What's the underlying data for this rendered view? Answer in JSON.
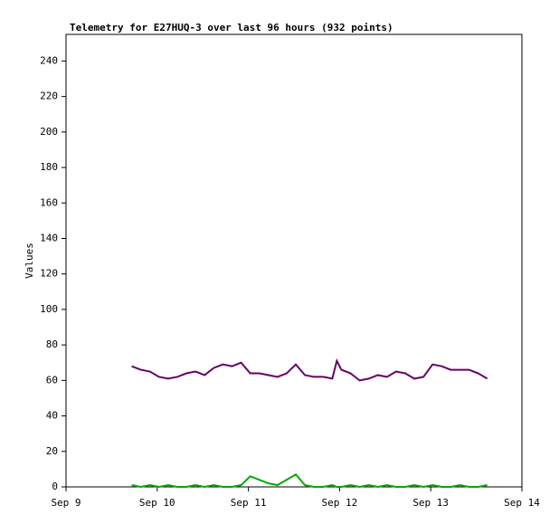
{
  "chart_data": {
    "type": "line",
    "title": "Telemetry for E27HUQ-3 over last 96 hours (932 points)",
    "y_label": "Values",
    "x": [
      9.72,
      9.82,
      9.92,
      10.02,
      10.12,
      10.22,
      10.32,
      10.42,
      10.52,
      10.62,
      10.72,
      10.82,
      10.92,
      11.02,
      11.12,
      11.22,
      11.32,
      11.42,
      11.52,
      11.62,
      11.72,
      11.82,
      11.92,
      11.97,
      12.02,
      12.12,
      12.22,
      12.32,
      12.42,
      12.52,
      12.62,
      12.72,
      12.82,
      12.92,
      13.02,
      13.12,
      13.22,
      13.32,
      13.42,
      13.52,
      13.62
    ],
    "series": [
      {
        "color": "#660066",
        "values": [
          68,
          66,
          65,
          62,
          61,
          62,
          64,
          65,
          63,
          67,
          69,
          68,
          70,
          64,
          64,
          63,
          62,
          64,
          69,
          63,
          62,
          62,
          61,
          71,
          66,
          64,
          60,
          61,
          63,
          62,
          65,
          64,
          61,
          62,
          69,
          68,
          66,
          66,
          66,
          64,
          61
        ]
      },
      {
        "color": "#00aa00",
        "values": [
          1,
          0,
          1,
          0,
          1,
          0,
          0,
          1,
          0,
          1,
          0,
          0,
          1,
          6,
          4,
          2,
          1,
          4,
          7,
          1,
          0,
          0,
          1,
          0,
          0,
          1,
          0,
          1,
          0,
          1,
          0,
          0,
          1,
          0,
          1,
          0,
          0,
          1,
          0,
          0,
          1
        ]
      }
    ],
    "xlim": [
      9,
      14
    ],
    "xticks": [
      {
        "value": 9,
        "label": "Sep 9"
      },
      {
        "value": 10,
        "label": "Sep 10"
      },
      {
        "value": 11,
        "label": "Sep 11"
      },
      {
        "value": 12,
        "label": "Sep 12"
      },
      {
        "value": 13,
        "label": "Sep 13"
      },
      {
        "value": 14,
        "label": "Sep 14"
      }
    ],
    "ylim": [
      0,
      255
    ],
    "yticks": [
      0,
      20,
      40,
      60,
      80,
      100,
      120,
      140,
      160,
      180,
      200,
      220,
      240
    ]
  }
}
